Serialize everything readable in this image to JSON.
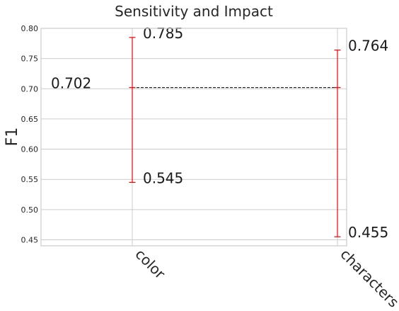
{
  "chart_data": {
    "type": "errorbar",
    "title": "Sensitivity and Impact",
    "xlabel": "",
    "ylabel": "F1",
    "ylim": [
      0.44,
      0.8
    ],
    "yticks": [
      "0.45",
      "0.50",
      "0.55",
      "0.60",
      "0.65",
      "0.70",
      "0.75",
      "0.80"
    ],
    "grid": true,
    "baseline": {
      "value": 0.702,
      "label": "0.702",
      "style": "dashed",
      "color": "#000000"
    },
    "categories": [
      "color",
      "characters"
    ],
    "bars": [
      {
        "category": "color",
        "center": 0.702,
        "min": 0.545,
        "max": 0.785,
        "min_label": "0.545",
        "max_label": "0.785"
      },
      {
        "category": "characters",
        "center": 0.702,
        "min": 0.455,
        "max": 0.764,
        "min_label": "0.455",
        "max_label": "0.764"
      }
    ],
    "colors": {
      "errorbar": "#ff0000",
      "grid": "#cccccc"
    }
  }
}
